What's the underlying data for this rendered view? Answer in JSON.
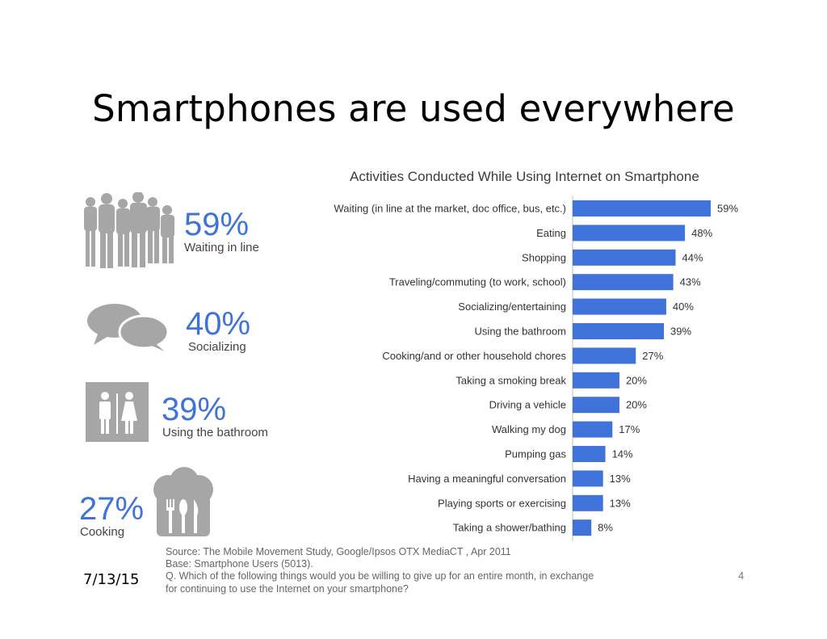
{
  "slide": {
    "title": "Smartphones are used everywhere",
    "date": "7/13/15",
    "page_number": "4"
  },
  "stats": [
    {
      "percent": "59%",
      "label": "Waiting in line",
      "icon": "people-icon"
    },
    {
      "percent": "40%",
      "label": "Socializing",
      "icon": "speech-bubbles-icon"
    },
    {
      "percent": "39%",
      "label": "Using the bathroom",
      "icon": "restroom-icon"
    },
    {
      "percent": "27%",
      "label": "Cooking",
      "icon": "chef-hat-utensils-icon"
    }
  ],
  "source": {
    "line1": "Source: The Mobile Movement Study, Google/Ipsos OTX MediaCT , Apr 2011",
    "line2": "Base:   Smartphone Users (5013).",
    "line3": "Q. Which of the following things would you be willing to give up for an entire month, in exchange",
    "line4": "for continuing to use the Internet on your smartphone?"
  },
  "colors": {
    "bar": "#3f73d9",
    "accent_text": "#3f73d9",
    "icon_gray": "#a6a6a6"
  },
  "chart_data": {
    "type": "bar",
    "orientation": "horizontal",
    "title": "Activities Conducted While Using Internet on Smartphone",
    "categories": [
      "Waiting (in line at the market, doc office, bus, etc.)",
      "Eating",
      "Shopping",
      "Traveling/commuting (to work, school)",
      "Socializing/entertaining",
      "Using the bathroom",
      "Cooking/and or other household chores",
      "Taking a smoking break",
      "Driving a vehicle",
      "Walking my dog",
      "Pumping gas",
      "Having a meaningful conversation",
      "Playing sports or exercising",
      "Taking a shower/bathing"
    ],
    "values": [
      59,
      48,
      44,
      43,
      40,
      39,
      27,
      20,
      20,
      17,
      14,
      13,
      13,
      8
    ],
    "value_labels": [
      "59%",
      "48%",
      "44%",
      "43%",
      "40%",
      "39%",
      "27%",
      "20%",
      "20%",
      "17%",
      "14%",
      "13%",
      "13%",
      "8%"
    ],
    "xlim": [
      0,
      59
    ],
    "grid": false,
    "legend": "none"
  }
}
